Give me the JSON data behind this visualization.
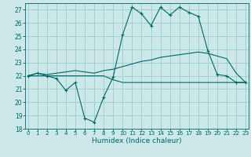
{
  "xlabel": "Humidex (Indice chaleur)",
  "bg_color": "#cce8e8",
  "grid_color": "#99cccc",
  "line_color": "#006666",
  "x_main": [
    0,
    1,
    2,
    3,
    4,
    5,
    6,
    7,
    8,
    9,
    10,
    11,
    12,
    13,
    14,
    15,
    16,
    17,
    18,
    19,
    20,
    21,
    22,
    23
  ],
  "y_main": [
    22.0,
    22.2,
    22.0,
    21.8,
    20.9,
    21.5,
    18.8,
    18.5,
    20.4,
    21.9,
    25.1,
    27.2,
    26.7,
    25.8,
    27.2,
    26.6,
    27.2,
    26.8,
    26.5,
    23.9,
    22.1,
    22.0,
    21.5,
    21.5
  ],
  "x_upper": [
    0,
    1,
    2,
    3,
    4,
    5,
    6,
    7,
    8,
    9,
    10,
    11,
    12,
    13,
    14,
    15,
    16,
    17,
    18,
    19,
    20,
    21,
    22,
    23
  ],
  "y_upper": [
    22.0,
    22.2,
    22.1,
    22.2,
    22.3,
    22.4,
    22.3,
    22.2,
    22.4,
    22.5,
    22.7,
    22.9,
    23.1,
    23.2,
    23.4,
    23.5,
    23.6,
    23.7,
    23.8,
    23.7,
    23.5,
    23.3,
    22.2,
    21.5
  ],
  "x_lower": [
    0,
    1,
    2,
    3,
    4,
    5,
    6,
    7,
    8,
    9,
    10,
    11,
    12,
    13,
    14,
    15,
    16,
    17,
    18,
    19,
    20,
    21,
    22,
    23
  ],
  "y_lower": [
    22.0,
    22.0,
    22.0,
    22.0,
    22.0,
    22.0,
    22.0,
    22.0,
    22.0,
    21.7,
    21.5,
    21.5,
    21.5,
    21.5,
    21.5,
    21.5,
    21.5,
    21.5,
    21.5,
    21.5,
    21.5,
    21.5,
    21.5,
    21.5
  ],
  "xlim": [
    -0.3,
    23.3
  ],
  "ylim": [
    18,
    27.5
  ],
  "yticks": [
    18,
    19,
    20,
    21,
    22,
    23,
    24,
    25,
    26,
    27
  ],
  "xticks": [
    0,
    1,
    2,
    3,
    4,
    5,
    6,
    7,
    8,
    9,
    10,
    11,
    12,
    13,
    14,
    15,
    16,
    17,
    18,
    19,
    20,
    21,
    22,
    23
  ]
}
